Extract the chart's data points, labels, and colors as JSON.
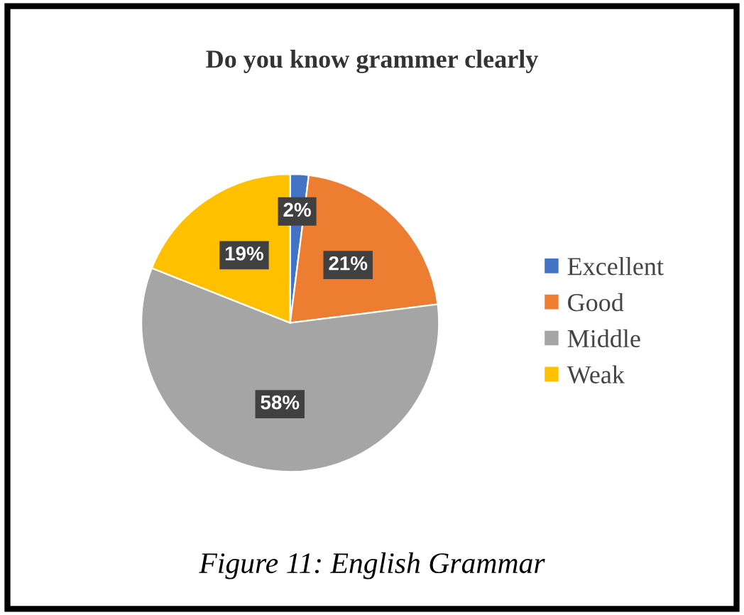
{
  "chart_data": {
    "type": "pie",
    "title": "Do you know grammer clearly",
    "categories": [
      "Excellent",
      "Good",
      "Middle",
      "Weak"
    ],
    "values": [
      2,
      21,
      58,
      19
    ],
    "value_labels": [
      "2%",
      "21%",
      "58%",
      "19%"
    ],
    "colors": [
      "#4472c4",
      "#ed7d31",
      "#a5a5a5",
      "#ffc000"
    ],
    "legend": "right",
    "annotations": [
      "Figure 11: English Grammar"
    ]
  }
}
